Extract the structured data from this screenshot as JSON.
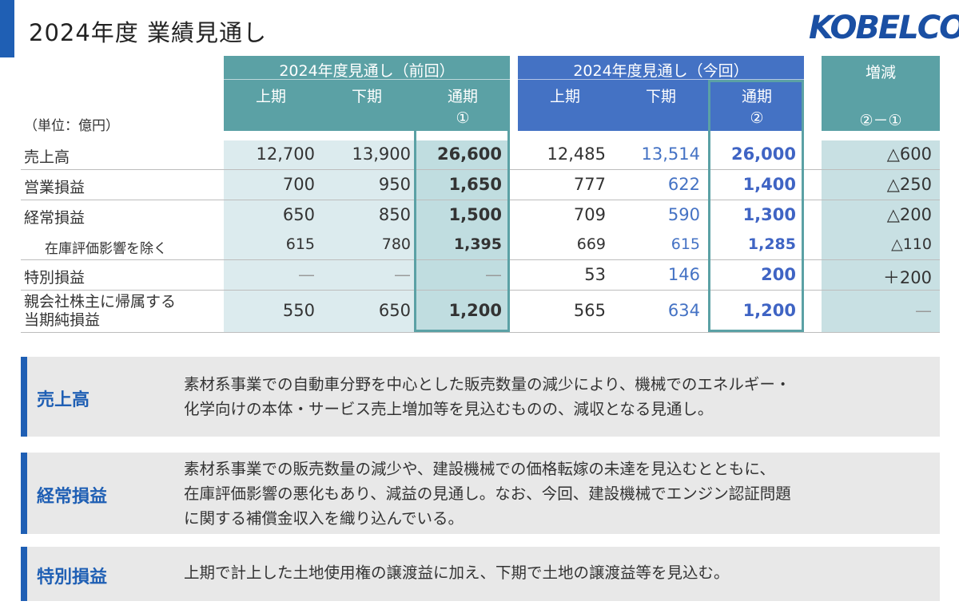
{
  "title": "2024年度  業績見通し",
  "logo_text": "KOBELCO",
  "unit": "（単位：億円）",
  "header": {
    "prev_group": "2024年度見通し（前回）",
    "curr_group": "2024年度見通し（今回）",
    "diff_group": "増減",
    "h1": "上期",
    "h2": "下期",
    "full": "通期",
    "prev_mark": "①",
    "curr_mark": "②",
    "diff_formula": "②－①"
  },
  "rows": [
    {
      "label": "売上高",
      "p1": "12,700",
      "p2": "13,900",
      "pt": "26,600",
      "c1": "12,485",
      "c2": "13,514",
      "ct": "26,000",
      "d": "△600"
    },
    {
      "label": "営業損益",
      "p1": "700",
      "p2": "950",
      "pt": "1,650",
      "c1": "777",
      "c2": "622",
      "ct": "1,400",
      "d": "△250"
    },
    {
      "label": "経常損益",
      "p1": "650",
      "p2": "850",
      "pt": "1,500",
      "c1": "709",
      "c2": "590",
      "ct": "1,300",
      "d": "△200"
    },
    {
      "label": "在庫評価影響を除く",
      "p1": "615",
      "p2": "780",
      "pt": "1,395",
      "c1": "669",
      "c2": "615",
      "ct": "1,285",
      "d": "△110"
    },
    {
      "label": "特別損益",
      "p1": "—",
      "p2": "—",
      "pt": "—",
      "c1": "53",
      "c2": "146",
      "ct": "200",
      "d": "＋200"
    },
    {
      "label_line1": "親会社株主に帰属する",
      "label_line2": "当期純損益",
      "p1": "550",
      "p2": "650",
      "pt": "1,200",
      "c1": "565",
      "c2": "634",
      "ct": "1,200",
      "d": "—"
    }
  ],
  "explanations": [
    {
      "head": "売上高",
      "line1": "素材系事業での自動車分野を中心とした販売数量の減少により、機械でのエネルギー・",
      "line2": "化学向けの本体・サービス売上増加等を見込むものの、減収となる見通し。"
    },
    {
      "head": "経常損益",
      "line1": "素材系事業での販売数量の減少や、建設機械での価格転嫁の未達を見込むとともに、",
      "line2": "在庫評価影響の悪化もあり、減益の見通し。なお、今回、建設機械でエンジン認証問題",
      "line3": "に関する補償金収入を織り込んでいる。"
    },
    {
      "head": "特別損益",
      "line1": "上期で計上した土地使用権の譲渡益に加え、下期で土地の譲渡益等を見込む。"
    }
  ],
  "colors": {
    "accent": "#1f5fb4",
    "teal": "#5ba1a5",
    "blue": "#4472c4"
  }
}
